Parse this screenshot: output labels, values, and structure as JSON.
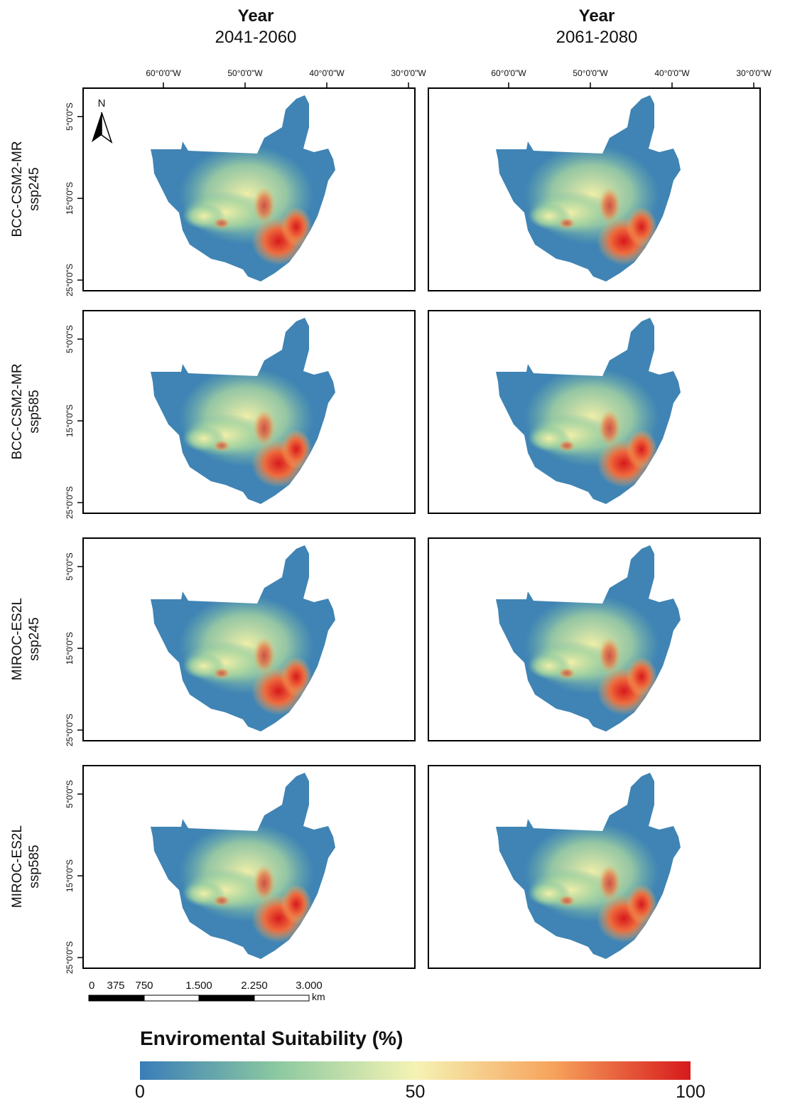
{
  "columns": [
    {
      "title": "Year",
      "period": "2041-2060"
    },
    {
      "title": "Year",
      "period": "2061-2080"
    }
  ],
  "longitude_labels": [
    "60°0'0\"W",
    "50°0'0\"W",
    "40°0'0\"W",
    "30°0'0\"W"
  ],
  "latitude_labels": [
    "5°0'0\"S",
    "15°0'0\"S",
    "25°0'0\"S"
  ],
  "rows": [
    {
      "model": "BCC-CSM2-MR",
      "scenario": "ssp245"
    },
    {
      "model": "BCC-CSM2-MR",
      "scenario": "ssp585"
    },
    {
      "model": "MIROC-ES2L",
      "scenario": "ssp245"
    },
    {
      "model": "MIROC-ES2L",
      "scenario": "ssp585"
    }
  ],
  "north_label": "N",
  "scale_bar": {
    "ticks": [
      "0",
      "375",
      "750",
      "1.500",
      "2.250",
      "3.000"
    ],
    "unit": "km"
  },
  "legend": {
    "title": "Enviromental Suitability (%)",
    "labels": [
      "0",
      "50",
      "100"
    ],
    "colors": [
      "#3a7db8",
      "#8cc9a0",
      "#f5f3b4",
      "#f7a35c",
      "#d7191c"
    ]
  }
}
